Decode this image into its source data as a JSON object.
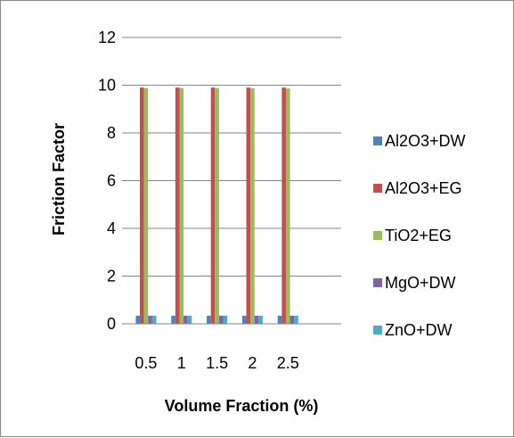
{
  "chart_data": {
    "type": "bar",
    "categories": [
      "0.5",
      "1",
      "1.5",
      "2",
      "2.5"
    ],
    "series": [
      {
        "name": "Al2O3+DW",
        "color": "#4F81BD",
        "values": [
          0.34,
          0.34,
          0.34,
          0.34,
          0.34
        ]
      },
      {
        "name": "Al2O3+EG",
        "color": "#C0504D",
        "values": [
          9.9,
          9.9,
          9.9,
          9.9,
          9.9
        ]
      },
      {
        "name": "TiO2+EG",
        "color": "#9BBB59",
        "values": [
          9.88,
          9.88,
          9.88,
          9.87,
          9.86
        ]
      },
      {
        "name": "MgO+DW",
        "color": "#8064A2",
        "values": [
          0.34,
          0.34,
          0.34,
          0.34,
          0.34
        ]
      },
      {
        "name": "ZnO+DW",
        "color": "#4BACC6",
        "values": [
          0.34,
          0.34,
          0.34,
          0.34,
          0.34
        ]
      }
    ],
    "title": "",
    "xlabel": "Volume Fraction (%)",
    "ylabel": "Friction Factor",
    "ylim": [
      0,
      12
    ],
    "yticks": [
      "0",
      "2",
      "4",
      "6",
      "8",
      "10",
      "12"
    ],
    "grid": "horizontal",
    "legend": "right"
  }
}
